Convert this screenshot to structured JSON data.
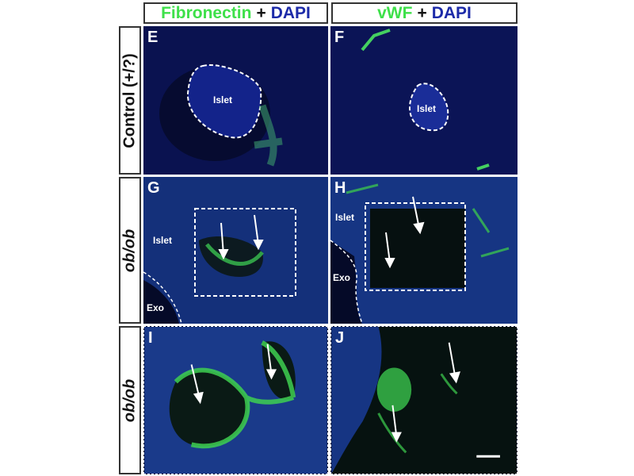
{
  "columns": [
    {
      "stain": "Fibronectin",
      "plus": "+",
      "counter": "DAPI"
    },
    {
      "stain": "vWF",
      "plus": "+",
      "counter": "DAPI"
    }
  ],
  "rows": [
    "Control (+/?)",
    "ob/ob",
    "ob/ob"
  ],
  "panels": {
    "E": {
      "letter": "E",
      "region": "Islet"
    },
    "F": {
      "letter": "F",
      "region": "Islet"
    },
    "G": {
      "letter": "G",
      "region": "Islet",
      "exo": "Exo"
    },
    "H": {
      "letter": "H",
      "region": "Islet",
      "exo": "Exo"
    },
    "I": {
      "letter": "I"
    },
    "J": {
      "letter": "J"
    }
  },
  "colors": {
    "green": "#3ee04a",
    "blue": "#1c2aa8",
    "background": "#050a28"
  }
}
